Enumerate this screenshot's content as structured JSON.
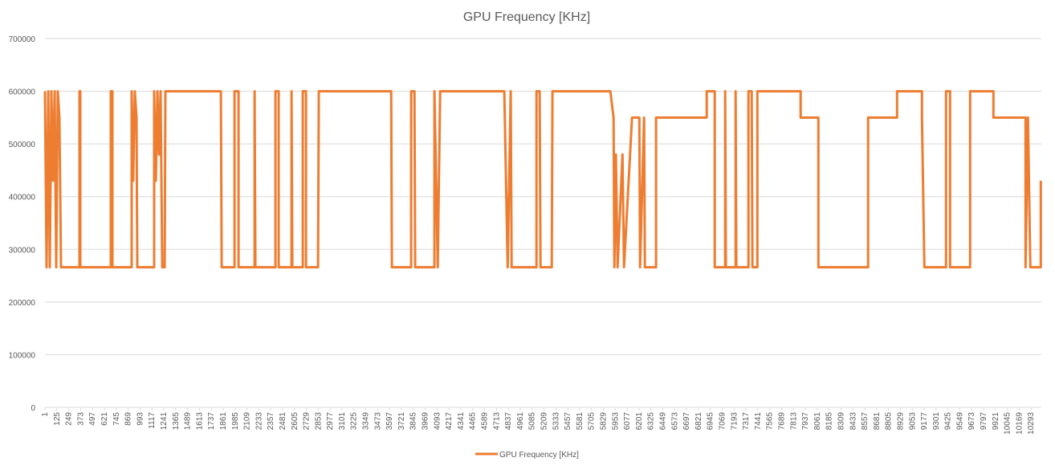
{
  "chart_data": {
    "type": "line",
    "title": "GPU Frequency [KHz]",
    "series": [
      {
        "name": "GPU Frequency [KHz]",
        "color": "#ed7d31",
        "x": [
          1,
          18,
          35,
          51,
          68,
          85,
          102,
          118,
          135,
          152,
          169,
          361,
          361,
          370,
          370,
          688,
          688,
          705,
          705,
          906,
          906,
          922,
          939,
          956,
          965,
          1141,
          1141,
          1158,
          1175,
          1191,
          1208,
          1225,
          1250,
          1258,
          1837,
          1845,
          1979,
          1979,
          2021,
          2021,
          2189,
          2189,
          2197,
          2407,
          2407,
          2440,
          2440,
          2574,
          2574,
          2583,
          2692,
          2692,
          2725,
          2725,
          2851,
          2859,
          3614,
          3622,
          3823,
          3823,
          3857,
          3865,
          4066,
          4066,
          4100,
          4125,
          4795,
          4830,
          4862,
          4871,
          5131,
          5131,
          5164,
          5173,
          5290,
          5298,
          5902,
          5935,
          5944,
          5960,
          5977,
          6028,
          6044,
          6128,
          6204,
          6212,
          6254,
          6262,
          6379,
          6379,
          6907,
          6907,
          6991,
          6991,
          7100,
          7100,
          7108,
          7209,
          7209,
          7217,
          7343,
          7343,
          7377,
          7385,
          7436,
          7436,
          7888,
          7888,
          8073,
          8073,
          8592,
          8592,
          8894,
          8894,
          9154,
          9154,
          9179,
          9405,
          9405,
          9447,
          9447,
          9657,
          9657,
          9900,
          9900,
          10235,
          10235,
          10260,
          10285,
          10394,
          10394
        ],
        "values": [
          600000,
          266000,
          600000,
          266000,
          600000,
          430000,
          600000,
          266000,
          600000,
          550000,
          266000,
          266000,
          600000,
          600000,
          266000,
          266000,
          600000,
          600000,
          266000,
          266000,
          600000,
          430000,
          600000,
          550000,
          266000,
          266000,
          600000,
          430000,
          600000,
          480000,
          600000,
          266000,
          266000,
          600000,
          600000,
          266000,
          266000,
          600000,
          600000,
          266000,
          266000,
          600000,
          266000,
          266000,
          600000,
          600000,
          266000,
          266000,
          600000,
          266000,
          266000,
          600000,
          600000,
          266000,
          266000,
          600000,
          600000,
          266000,
          266000,
          600000,
          600000,
          266000,
          266000,
          600000,
          266000,
          600000,
          600000,
          266000,
          600000,
          266000,
          266000,
          600000,
          600000,
          266000,
          266000,
          600000,
          600000,
          550000,
          266000,
          480000,
          266000,
          480000,
          266000,
          550000,
          550000,
          266000,
          550000,
          266000,
          266000,
          550000,
          550000,
          600000,
          600000,
          266000,
          266000,
          600000,
          266000,
          266000,
          600000,
          266000,
          266000,
          600000,
          600000,
          266000,
          266000,
          600000,
          600000,
          550000,
          550000,
          266000,
          266000,
          550000,
          550000,
          600000,
          600000,
          550000,
          266000,
          266000,
          600000,
          600000,
          266000,
          266000,
          600000,
          600000,
          550000,
          550000,
          266000,
          550000,
          266000,
          266000,
          430000
        ]
      }
    ],
    "xlim": [
      1,
      10400
    ],
    "xticks": [
      1,
      125,
      249,
      373,
      497,
      621,
      745,
      869,
      993,
      1117,
      1241,
      1365,
      1489,
      1613,
      1737,
      1861,
      1985,
      2109,
      2233,
      2357,
      2481,
      2605,
      2729,
      2853,
      2977,
      3101,
      3225,
      3349,
      3473,
      3597,
      3721,
      3845,
      3969,
      4093,
      4217,
      4341,
      4465,
      4589,
      4713,
      4837,
      4961,
      5085,
      5209,
      5333,
      5457,
      5581,
      5705,
      5829,
      5953,
      6077,
      6201,
      6325,
      6449,
      6573,
      6697,
      6821,
      6945,
      7069,
      7193,
      7317,
      7441,
      7565,
      7689,
      7813,
      7937,
      8061,
      8185,
      8309,
      8433,
      8557,
      8681,
      8805,
      8929,
      9053,
      9177,
      9301,
      9425,
      9549,
      9673,
      9797,
      9921,
      10045,
      10169,
      10293
    ],
    "ylim": [
      0,
      700000
    ],
    "yticks": [
      0,
      100000,
      200000,
      300000,
      400000,
      500000,
      600000,
      700000
    ],
    "grid": true,
    "legend": "bottom"
  }
}
